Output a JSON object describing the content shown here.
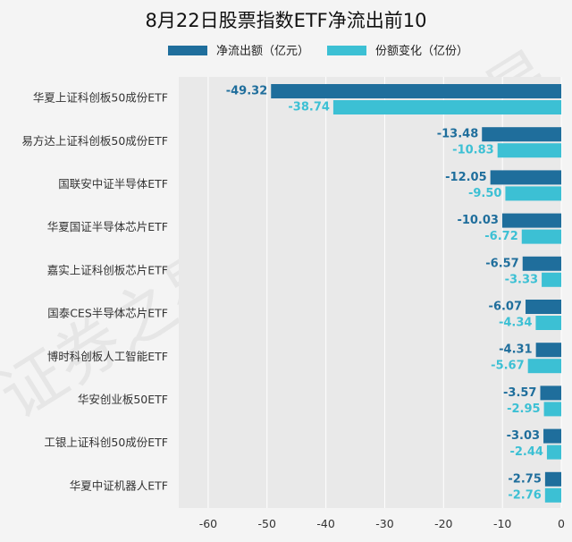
{
  "chart_data": {
    "type": "bar",
    "orientation": "horizontal",
    "title": "8月22日股票指数ETF净流出前10",
    "categories": [
      "华夏上证科创板50成份ETF",
      "易方达上证科创板50成份ETF",
      "国联安中证半导体ETF",
      "华夏国证半导体芯片ETF",
      "嘉实上证科创板芯片ETF",
      "国泰CES半导体芯片ETF",
      "博时科创板人工智能ETF",
      "华安创业板50ETF",
      "工银上证科创50成份ETF",
      "华夏中证机器人ETF"
    ],
    "series": [
      {
        "name": "净流出额（亿元）",
        "color": "#1f6e9c",
        "values": [
          -49.32,
          -13.48,
          -12.05,
          -10.03,
          -6.57,
          -6.07,
          -4.31,
          -3.57,
          -3.03,
          -2.75
        ],
        "labels": [
          "-49.32",
          "-13.48",
          "-12.05",
          "-10.03",
          "-6.57",
          "-6.07",
          "-4.31",
          "-3.57",
          "-3.03",
          "-2.75"
        ]
      },
      {
        "name": "份额变化（亿份）",
        "color": "#3cc0d4",
        "values": [
          -38.74,
          -10.83,
          -9.5,
          -6.72,
          -3.33,
          -4.34,
          -5.67,
          -2.95,
          -2.44,
          -2.76
        ],
        "labels": [
          "-38.74",
          "-10.83",
          "-9.50",
          "-6.72",
          "-3.33",
          "-4.34",
          "-5.67",
          "-2.95",
          "-2.44",
          "-2.76"
        ]
      }
    ],
    "xlim": [
      -65,
      0
    ],
    "xticks": [
      -60,
      -50,
      -40,
      -30,
      -20,
      -10,
      0
    ],
    "xlabel": "",
    "ylabel": "",
    "legend": "top",
    "grid": true
  },
  "watermark": "证券之星"
}
